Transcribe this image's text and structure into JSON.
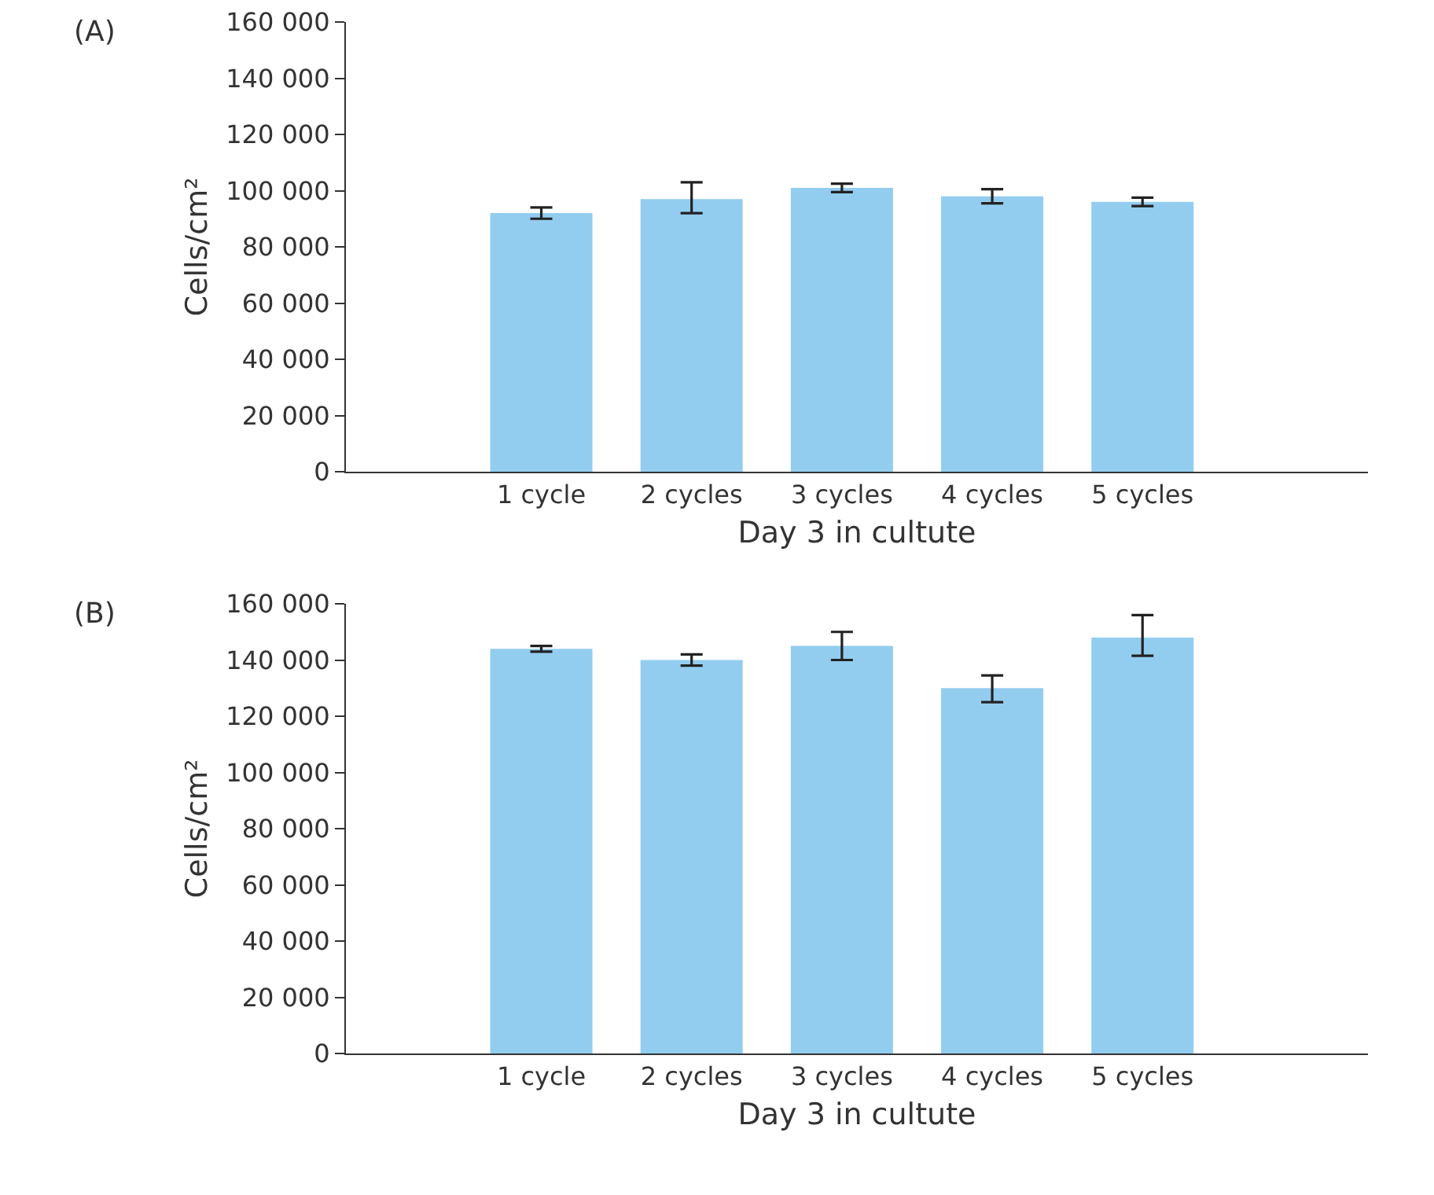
{
  "chart_data": [
    {
      "type": "bar",
      "title": "(A)",
      "xlabel": "Day 3 in cultute",
      "ylabel": "Cells/cm²",
      "categories": [
        "1 cycle",
        "2 cycles",
        "3 cycles",
        "4 cycles",
        "5 cycles"
      ],
      "values": [
        92000,
        97000,
        101000,
        98000,
        96000
      ],
      "errors": [
        2000,
        [
          92000,
          103000
        ],
        1500,
        2500,
        1500
      ],
      "color": "#92cdf0",
      "ylim": [
        0,
        160000
      ],
      "yticks": [
        {
          "value": 0,
          "label": "0"
        },
        {
          "value": 20000,
          "label": "20 000"
        },
        {
          "value": 40000,
          "label": "40 000"
        },
        {
          "value": 60000,
          "label": "60 000"
        },
        {
          "value": 80000,
          "label": "80 000"
        },
        {
          "value": 100000,
          "label": "100 000"
        },
        {
          "value": 120000,
          "label": "120 000"
        },
        {
          "value": 140000,
          "label": "140 000"
        },
        {
          "value": 160000,
          "label": "160 000"
        }
      ],
      "grid": false
    },
    {
      "type": "bar",
      "title": "(B)",
      "xlabel": "Day 3 in cultute",
      "ylabel": "Cells/cm²",
      "categories": [
        "1 cycle",
        "2 cycles",
        "3 cycles",
        "4 cycles",
        "5 cycles"
      ],
      "values": [
        144000,
        140000,
        145000,
        130000,
        148000
      ],
      "errors": [
        1000,
        2000,
        5000,
        [
          125000,
          134500
        ],
        [
          141500,
          156000
        ]
      ],
      "color": "#92cdf0",
      "ylim": [
        0,
        160000
      ],
      "yticks": [
        {
          "value": 0,
          "label": "0"
        },
        {
          "value": 20000,
          "label": "20 000"
        },
        {
          "value": 40000,
          "label": "40 000"
        },
        {
          "value": 60000,
          "label": "60 000"
        },
        {
          "value": 80000,
          "label": "80 000"
        },
        {
          "value": 100000,
          "label": "100 000"
        },
        {
          "value": 120000,
          "label": "120 000"
        },
        {
          "value": 140000,
          "label": "140 000"
        },
        {
          "value": 160000,
          "label": "160 000"
        }
      ],
      "grid": false
    }
  ]
}
